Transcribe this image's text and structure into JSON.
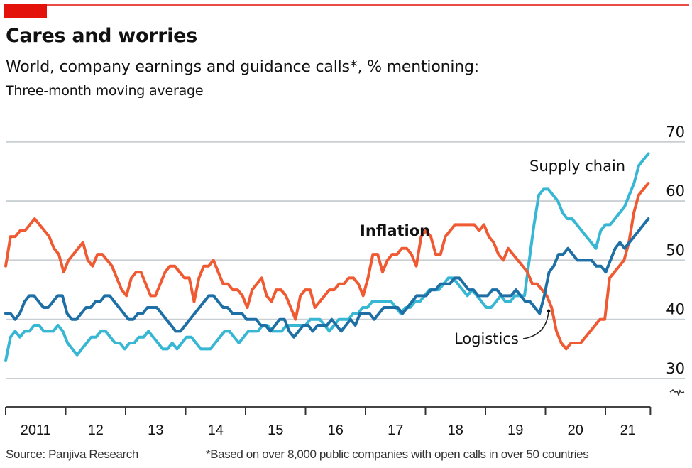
{
  "header": {
    "title": "Cares and worries",
    "subtitle": "World, company earnings and guidance calls*, % mentioning:",
    "subtitle2": "Three-month moving average"
  },
  "footer": {
    "source": "Source: Panjiva Research",
    "note": "*Based on over 8,000 public companies with open calls in over 50 countries"
  },
  "chart_data": {
    "type": "line",
    "title": "Cares and worries",
    "subtitle": "World, company earnings and guidance calls*, % mentioning: Three-month moving average",
    "xlabel": "",
    "ylabel": "% mentioning",
    "ylim": [
      30,
      70
    ],
    "y_ticks": [
      30,
      40,
      50,
      60,
      70
    ],
    "y_tick_labels": [
      "30",
      "40",
      "50",
      "60",
      "70"
    ],
    "y_axis_side": "right",
    "y_axis_break": true,
    "x_range": [
      2011.0,
      2021.75
    ],
    "x_ticks": [
      2011,
      2012,
      2013,
      2014,
      2015,
      2016,
      2017,
      2018,
      2019,
      2020,
      2021
    ],
    "x_tick_labels": [
      "2011",
      "12",
      "13",
      "14",
      "15",
      "16",
      "17",
      "18",
      "19",
      "20",
      "21"
    ],
    "grid": true,
    "legend": "inline labels",
    "annotations": [
      {
        "text": "Inflation",
        "series": "Inflation",
        "bold": true
      },
      {
        "text": "Supply chain",
        "series": "Supply chain"
      },
      {
        "text": "Logistics",
        "series": "Logistics",
        "pointer": true
      }
    ],
    "series": [
      {
        "name": "Inflation",
        "color": "#f05a33",
        "start": 2011.0,
        "step_months": 1,
        "values": [
          49,
          54,
          54,
          55,
          55,
          56,
          57,
          56,
          55,
          54,
          52,
          51,
          48,
          50,
          51,
          52,
          53,
          50,
          49,
          51,
          51,
          50,
          49,
          47,
          45,
          44,
          47,
          48,
          48,
          46,
          44,
          44,
          46,
          48,
          49,
          49,
          48,
          47,
          47,
          43,
          47,
          49,
          49,
          50,
          48,
          46,
          46,
          45,
          45,
          44,
          42,
          45,
          46,
          47,
          44,
          43,
          45,
          45,
          44,
          42,
          40,
          44,
          45,
          45,
          42,
          43,
          44,
          45,
          45,
          46,
          46,
          47,
          47,
          46,
          44,
          47,
          51,
          51,
          48,
          50,
          51,
          51,
          52,
          52,
          51,
          49,
          54,
          55,
          54,
          51,
          51,
          54,
          55,
          56,
          56,
          56,
          56,
          56,
          55,
          56,
          54,
          53,
          51,
          50,
          52,
          51,
          50,
          49,
          48,
          46,
          46,
          45,
          44,
          42,
          38,
          36,
          35,
          36,
          36,
          36,
          37,
          38,
          39,
          40,
          40,
          47,
          48,
          49,
          50,
          53,
          58,
          61,
          62,
          63
        ],
        "end_value": 63
      },
      {
        "name": "Logistics",
        "color": "#1d6fa5",
        "start": 2011.0,
        "step_months": 1,
        "values": [
          41,
          41,
          40,
          41,
          43,
          44,
          44,
          43,
          42,
          42,
          43,
          44,
          44,
          41,
          40,
          40,
          41,
          42,
          42,
          43,
          43,
          44,
          44,
          43,
          42,
          41,
          40,
          40,
          41,
          41,
          42,
          42,
          42,
          41,
          40,
          39,
          38,
          38,
          39,
          40,
          41,
          42,
          43,
          44,
          44,
          43,
          42,
          42,
          41,
          41,
          41,
          40,
          40,
          40,
          39,
          39,
          38,
          39,
          40,
          40,
          38,
          37,
          38,
          39,
          39,
          38,
          39,
          39,
          39,
          40,
          39,
          38,
          39,
          40,
          39,
          41,
          41,
          41,
          40,
          41,
          42,
          42,
          42,
          42,
          41,
          42,
          43,
          44,
          44,
          44,
          45,
          45,
          46,
          46,
          46,
          47,
          47,
          46,
          45,
          45,
          44,
          44,
          44,
          45,
          45,
          44,
          44,
          44,
          45,
          44,
          43,
          43,
          42,
          41,
          44,
          48,
          49,
          51,
          51,
          52,
          51,
          50,
          50,
          50,
          50,
          49,
          49,
          48,
          50,
          52,
          53,
          52,
          53,
          54,
          55,
          56,
          57
        ],
        "end_value": 57
      },
      {
        "name": "Supply chain",
        "color": "#37b7d3",
        "start": 2011.0,
        "step_months": 1,
        "values": [
          33,
          37,
          38,
          37,
          38,
          38,
          39,
          39,
          38,
          38,
          38,
          39,
          38,
          36,
          35,
          34,
          35,
          36,
          37,
          37,
          38,
          38,
          37,
          36,
          36,
          35,
          36,
          36,
          37,
          37,
          38,
          37,
          36,
          35,
          35,
          36,
          35,
          36,
          37,
          37,
          36,
          35,
          35,
          35,
          36,
          37,
          38,
          38,
          37,
          36,
          37,
          38,
          38,
          38,
          39,
          39,
          38,
          38,
          38,
          39,
          39,
          39,
          39,
          39,
          40,
          40,
          40,
          39,
          38,
          39,
          40,
          40,
          40,
          41,
          41,
          42,
          42,
          43,
          43,
          43,
          43,
          43,
          42,
          41,
          42,
          42,
          43,
          43,
          44,
          45,
          45,
          45,
          46,
          47,
          47,
          46,
          45,
          44,
          45,
          44,
          43,
          42,
          42,
          43,
          44,
          43,
          43,
          44,
          44,
          44,
          50,
          56,
          61,
          62,
          62,
          61,
          60,
          58,
          57,
          57,
          56,
          55,
          54,
          53,
          52,
          55,
          56,
          56,
          57,
          58,
          59,
          61,
          63,
          66,
          67,
          68
        ],
        "end_value": 68
      }
    ]
  }
}
